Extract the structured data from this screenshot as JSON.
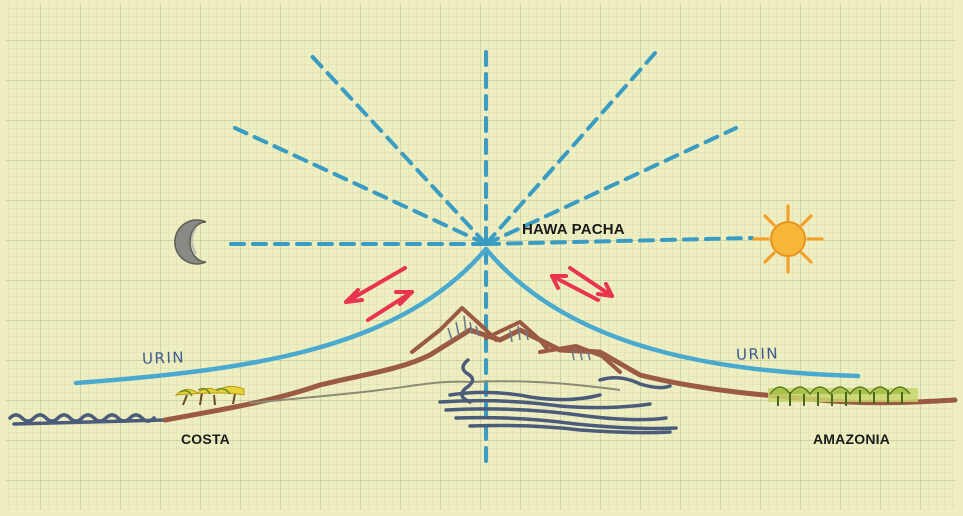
{
  "labels": {
    "hawa_pacha": "HAWA PACHA",
    "costa": "COSTA",
    "amazonia": "AMAZONIA",
    "urin_left": "URIN",
    "urin_right": "URIN"
  },
  "icons": [
    "moon-icon",
    "sun-icon",
    "palm-trees-icon",
    "jungle-trees-icon",
    "mountains-icon",
    "sea-waves-icon"
  ],
  "colors": {
    "paper": "#efeec0",
    "grid": "#b8c79a",
    "dashed_rays": "#3a9cc3",
    "urin_curve": "#4aa9cf",
    "arrows": "#e8344e",
    "mountains": "#9b5a44",
    "sun": "#f2a02a",
    "moon": "#8a8a84",
    "water": "#4a5c7a"
  }
}
